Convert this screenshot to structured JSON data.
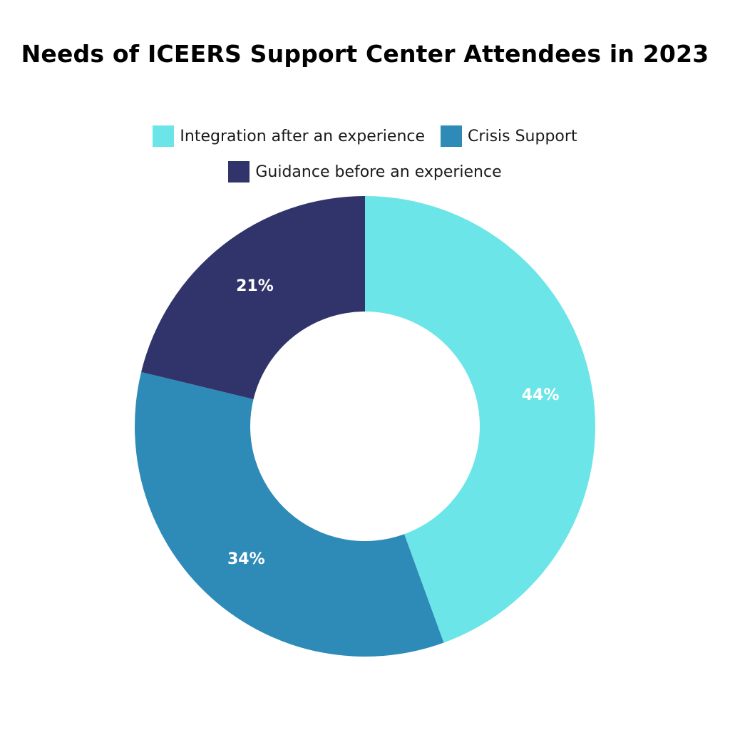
{
  "chart_data": {
    "type": "pie",
    "variant": "donut",
    "title": "Needs of ICEERS Support Center Attendees in 2023",
    "legend_position": "top",
    "slices": [
      {
        "label": "Integration after an experience",
        "value": 44,
        "display": "44%",
        "color": "#6be5e8"
      },
      {
        "label": "Crisis Support",
        "value": 34,
        "display": "34%",
        "color": "#2e8bb8"
      },
      {
        "label": "Guidance before an experience",
        "value": 21,
        "display": "21%",
        "color": "#31346a"
      }
    ]
  }
}
